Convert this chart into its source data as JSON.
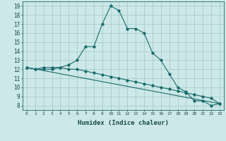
{
  "xlabel": "Humidex (Indice chaleur)",
  "background_color": "#cce8e8",
  "grid_color": "#aacccc",
  "line_color": "#1a6b6b",
  "xlim": [
    -0.5,
    23.5
  ],
  "ylim": [
    7.5,
    19.5
  ],
  "xticks": [
    0,
    1,
    2,
    3,
    4,
    5,
    6,
    7,
    8,
    9,
    10,
    11,
    12,
    13,
    14,
    15,
    16,
    17,
    18,
    19,
    20,
    21,
    22,
    23
  ],
  "yticks": [
    8,
    9,
    10,
    11,
    12,
    13,
    14,
    15,
    16,
    17,
    18,
    19
  ],
  "series1_x": [
    0,
    1,
    2,
    3,
    4,
    5,
    6,
    7,
    8,
    9,
    10,
    11,
    12,
    13,
    14,
    15,
    16,
    17,
    18,
    19,
    20,
    21,
    22,
    23
  ],
  "series1_y": [
    12.2,
    12.0,
    12.2,
    12.2,
    12.2,
    12.5,
    13.0,
    14.5,
    14.5,
    17.0,
    19.0,
    18.5,
    16.5,
    16.5,
    16.0,
    13.8,
    13.0,
    11.5,
    10.0,
    9.5,
    8.5,
    8.5,
    8.0,
    8.2
  ],
  "series2_x": [
    0,
    1,
    2,
    3,
    4,
    5,
    6,
    7,
    8,
    9,
    10,
    11,
    12,
    13,
    14,
    15,
    16,
    17,
    18,
    19,
    20,
    21,
    22,
    23
  ],
  "series2_y": [
    12.2,
    12.0,
    12.0,
    12.0,
    12.2,
    12.0,
    12.0,
    11.8,
    11.6,
    11.4,
    11.2,
    11.0,
    10.8,
    10.6,
    10.4,
    10.2,
    10.0,
    9.8,
    9.6,
    9.4,
    9.2,
    9.0,
    8.8,
    8.2
  ],
  "trend_x": [
    0,
    23
  ],
  "trend_y": [
    12.2,
    8.2
  ]
}
